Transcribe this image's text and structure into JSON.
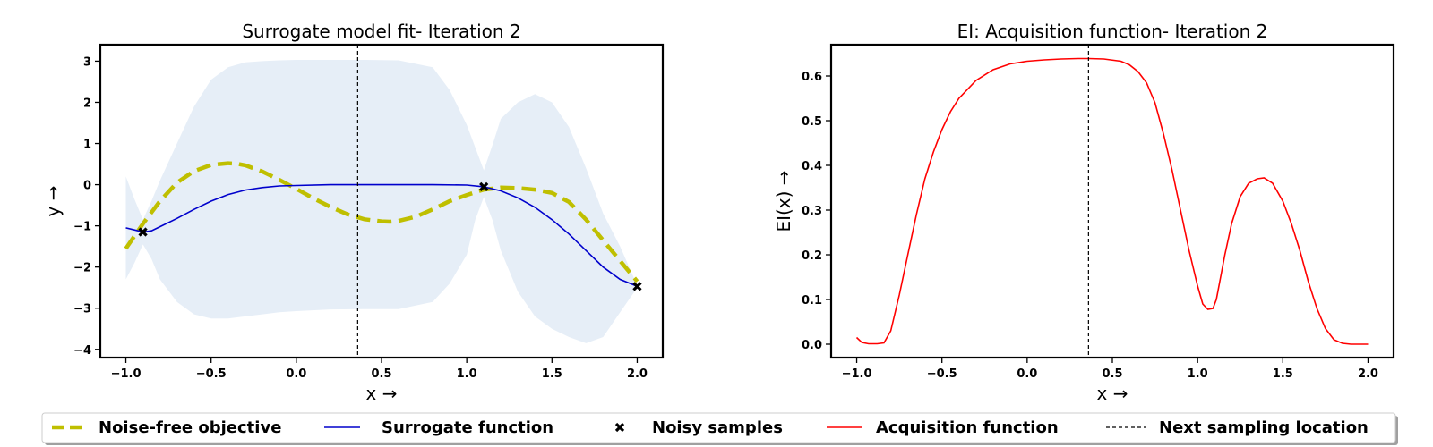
{
  "chart_data": [
    {
      "type": "line",
      "title": "Surrogate model fit- Iteration 2",
      "xlabel": "x →",
      "ylabel": "y →",
      "xlim": [
        -1.15,
        2.15
      ],
      "ylim": [
        -4.2,
        3.4
      ],
      "xticks": [
        -1.0,
        -0.5,
        0.0,
        0.5,
        1.0,
        1.5,
        2.0
      ],
      "xtick_labels": [
        "−1.0",
        "−0.5",
        "0.0",
        "0.5",
        "1.0",
        "1.5",
        "2.0"
      ],
      "yticks": [
        -4,
        -3,
        -2,
        -1,
        0,
        1,
        2,
        3
      ],
      "ytick_labels": [
        "−4",
        "−3",
        "−2",
        "−1",
        "0",
        "1",
        "2",
        "3"
      ],
      "grid": false,
      "series": [
        {
          "name": "Noise-free objective",
          "color": "#bfbf00",
          "style": "dashed",
          "x": [
            -1.0,
            -0.9,
            -0.8,
            -0.7,
            -0.6,
            -0.5,
            -0.4,
            -0.35,
            -0.3,
            -0.2,
            -0.1,
            0.0,
            0.1,
            0.2,
            0.3,
            0.4,
            0.5,
            0.55,
            0.6,
            0.7,
            0.8,
            0.9,
            1.0,
            1.1,
            1.2,
            1.3,
            1.4,
            1.5,
            1.6,
            1.7,
            1.8,
            1.9,
            2.0
          ],
          "y": [
            -1.55,
            -0.95,
            -0.4,
            0.05,
            0.33,
            0.48,
            0.52,
            0.51,
            0.47,
            0.32,
            0.12,
            -0.1,
            -0.33,
            -0.54,
            -0.72,
            -0.84,
            -0.89,
            -0.9,
            -0.88,
            -0.78,
            -0.6,
            -0.4,
            -0.25,
            -0.12,
            -0.07,
            -0.08,
            -0.12,
            -0.2,
            -0.42,
            -0.85,
            -1.35,
            -1.85,
            -2.35
          ]
        },
        {
          "name": "Surrogate function",
          "color": "#0000cc",
          "style": "solid",
          "x": [
            -1.0,
            -0.95,
            -0.9,
            -0.85,
            -0.8,
            -0.7,
            -0.6,
            -0.5,
            -0.4,
            -0.3,
            -0.2,
            -0.1,
            0.0,
            0.2,
            0.4,
            0.6,
            0.8,
            1.0,
            1.1,
            1.2,
            1.3,
            1.4,
            1.5,
            1.6,
            1.7,
            1.8,
            1.9,
            2.0
          ],
          "y": [
            -1.05,
            -1.1,
            -1.15,
            -1.12,
            -1.02,
            -0.82,
            -0.6,
            -0.4,
            -0.24,
            -0.13,
            -0.07,
            -0.03,
            -0.02,
            0.0,
            0.0,
            0.0,
            0.0,
            -0.01,
            -0.05,
            -0.15,
            -0.32,
            -0.55,
            -0.85,
            -1.2,
            -1.6,
            -2.0,
            -2.3,
            -2.47
          ]
        }
      ],
      "band": {
        "x": [
          -1.0,
          -0.95,
          -0.9,
          -0.85,
          -0.8,
          -0.7,
          -0.6,
          -0.5,
          -0.4,
          -0.3,
          -0.2,
          -0.1,
          0.0,
          0.2,
          0.4,
          0.6,
          0.8,
          0.9,
          1.0,
          1.05,
          1.1,
          1.15,
          1.2,
          1.3,
          1.4,
          1.5,
          1.6,
          1.7,
          1.8,
          1.9,
          2.0
        ],
        "lower": [
          -2.3,
          -1.9,
          -1.45,
          -1.8,
          -2.3,
          -2.85,
          -3.15,
          -3.25,
          -3.25,
          -3.2,
          -3.15,
          -3.1,
          -3.07,
          -3.03,
          -3.02,
          -3.02,
          -2.85,
          -2.4,
          -1.7,
          -0.85,
          -0.3,
          -0.85,
          -1.6,
          -2.6,
          -3.2,
          -3.5,
          -3.7,
          -3.85,
          -3.7,
          -3.1,
          -2.5
        ],
        "upper": [
          0.2,
          -0.35,
          -0.85,
          -0.4,
          0.1,
          1.0,
          1.9,
          2.55,
          2.85,
          2.97,
          3.0,
          3.02,
          3.03,
          3.03,
          3.03,
          3.02,
          2.85,
          2.3,
          1.45,
          0.9,
          0.35,
          0.95,
          1.6,
          2.0,
          2.2,
          2.0,
          1.4,
          0.4,
          -0.7,
          -1.5,
          -2.45
        ]
      },
      "samples": {
        "name": "Noisy samples",
        "x": [
          -0.9,
          1.1,
          2.0
        ],
        "y": [
          -1.15,
          -0.05,
          -2.47
        ]
      },
      "next_sample_x": 0.36
    },
    {
      "type": "line",
      "title": "EI: Acquisition function- Iteration 2",
      "xlabel": "x →",
      "ylabel": "EI(x) →",
      "xlim": [
        -1.15,
        2.15
      ],
      "ylim": [
        -0.03,
        0.67
      ],
      "xticks": [
        -1.0,
        -0.5,
        0.0,
        0.5,
        1.0,
        1.5,
        2.0
      ],
      "xtick_labels": [
        "−1.0",
        "−0.5",
        "0.0",
        "0.5",
        "1.0",
        "1.5",
        "2.0"
      ],
      "yticks": [
        0.0,
        0.1,
        0.2,
        0.3,
        0.4,
        0.5,
        0.6
      ],
      "ytick_labels": [
        "0.0",
        "0.1",
        "0.2",
        "0.3",
        "0.4",
        "0.5",
        "0.6"
      ],
      "grid": false,
      "series": [
        {
          "name": "Acquisition function",
          "color": "#ff0000",
          "style": "solid",
          "x": [
            -1.0,
            -0.97,
            -0.93,
            -0.88,
            -0.84,
            -0.8,
            -0.75,
            -0.7,
            -0.65,
            -0.6,
            -0.55,
            -0.5,
            -0.45,
            -0.4,
            -0.3,
            -0.2,
            -0.1,
            0.0,
            0.1,
            0.2,
            0.3,
            0.36,
            0.45,
            0.55,
            0.6,
            0.65,
            0.7,
            0.75,
            0.8,
            0.85,
            0.9,
            0.95,
            1.0,
            1.03,
            1.06,
            1.09,
            1.11,
            1.13,
            1.16,
            1.2,
            1.25,
            1.3,
            1.35,
            1.39,
            1.44,
            1.5,
            1.55,
            1.6,
            1.65,
            1.7,
            1.75,
            1.8,
            1.85,
            1.9,
            1.95,
            2.0
          ],
          "y": [
            0.015,
            0.004,
            0.001,
            0.001,
            0.003,
            0.03,
            0.11,
            0.2,
            0.29,
            0.37,
            0.43,
            0.48,
            0.52,
            0.55,
            0.59,
            0.614,
            0.627,
            0.633,
            0.636,
            0.638,
            0.639,
            0.639,
            0.638,
            0.633,
            0.625,
            0.61,
            0.585,
            0.54,
            0.47,
            0.39,
            0.3,
            0.21,
            0.13,
            0.09,
            0.078,
            0.08,
            0.1,
            0.14,
            0.2,
            0.27,
            0.33,
            0.36,
            0.37,
            0.372,
            0.36,
            0.32,
            0.27,
            0.21,
            0.14,
            0.08,
            0.035,
            0.01,
            0.002,
            0.0,
            0.0,
            0.0
          ]
        }
      ],
      "next_sample_x": 0.36
    }
  ],
  "legend": {
    "items": [
      {
        "label": "Noise-free objective",
        "kind": "dashed",
        "color": "#bfbf00"
      },
      {
        "label": "Surrogate function",
        "kind": "line",
        "color": "#0000cc"
      },
      {
        "label": "Noisy samples",
        "kind": "marker",
        "color": "#000000"
      },
      {
        "label": "Acquisition function",
        "kind": "line",
        "color": "#ff0000"
      },
      {
        "label": "Next sampling location",
        "kind": "dotted",
        "color": "#000000"
      }
    ]
  },
  "colors": {
    "band": "#e6eef7",
    "axis": "#000000"
  }
}
